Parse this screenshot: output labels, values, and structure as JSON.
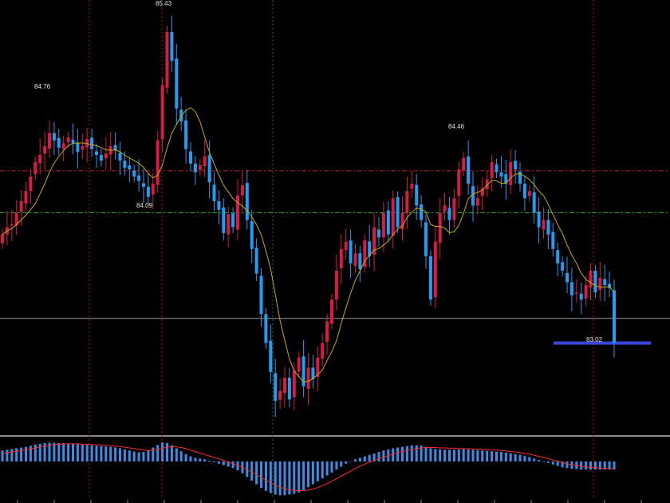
{
  "chart_data": {
    "type": "candlestick",
    "title": "",
    "xlabel": "",
    "ylabel": "",
    "ylim": [
      82.48,
      85.47
    ],
    "grid": false,
    "colors": {
      "up": "#d81b45",
      "down": "#1e9ef5",
      "ma_line": "#c8a814",
      "macd_bar": "#3a8ee6",
      "signal_line": "#ff2a2a",
      "price_line": "#9a9a9a",
      "red_level": "#c81e1e",
      "green_level": "#19b419",
      "blue_level": "#3c46dc",
      "vertical_marker": "#b01a1a",
      "vertical_marker_green": "#1a7a1a"
    },
    "annotations": [
      {
        "text": "85.43",
        "value": 85.43
      },
      {
        "text": "84.76",
        "value": 84.76
      },
      {
        "text": "84.09",
        "value": 84.09
      },
      {
        "text": "84.46",
        "value": 84.46
      },
      {
        "text": "83.02",
        "value": 83.02
      }
    ],
    "levels": {
      "red_dashed": 84.29,
      "green_dashed": 84.0,
      "current_price": 83.27,
      "blue_support": 83.1
    },
    "closes": [
      83.85,
      83.9,
      83.92,
      84.0,
      84.08,
      84.15,
      84.25,
      84.35,
      84.4,
      84.46,
      84.55,
      84.5,
      84.45,
      84.48,
      84.52,
      84.48,
      84.42,
      84.46,
      84.51,
      84.44,
      84.4,
      84.36,
      84.41,
      84.46,
      84.43,
      84.36,
      84.31,
      84.3,
      84.25,
      84.22,
      84.18,
      84.11,
      84.2,
      84.5,
      84.88,
      85.25,
      85.05,
      84.72,
      84.63,
      84.44,
      84.34,
      84.28,
      84.33,
      84.39,
      84.21,
      84.08,
      84.02,
      83.86,
      83.99,
      83.9,
      84.12,
      84.19,
      83.95,
      83.75,
      83.58,
      83.3,
      83.1,
      82.9,
      82.7,
      82.77,
      82.86,
      82.71,
      82.91,
      83.0,
      82.8,
      82.93,
      82.85,
      83.0,
      83.1,
      83.25,
      83.4,
      83.6,
      83.75,
      83.8,
      83.65,
      83.72,
      83.61,
      83.81,
      83.7,
      83.9,
      83.83,
      84.0,
      83.85,
      84.1,
      83.9,
      84.0,
      84.15,
      84.2,
      84.05,
      83.95,
      83.7,
      83.4,
      83.8,
      84.0,
      84.05,
      83.95,
      84.1,
      84.3,
      84.38,
      84.2,
      84.05,
      84.1,
      84.17,
      84.23,
      84.35,
      84.28,
      84.25,
      84.2,
      84.35,
      84.3,
      84.2,
      84.1,
      84.15,
      84.0,
      83.9,
      83.95,
      83.85,
      83.75,
      83.65,
      83.6,
      83.52,
      83.43,
      83.45,
      83.4,
      83.5,
      83.6,
      83.45,
      83.55,
      83.5,
      83.48,
      83.1
    ],
    "opens_note": "",
    "macd_histogram": [
      0.3,
      0.32,
      0.34,
      0.36,
      0.38,
      0.4,
      0.43,
      0.46,
      0.48,
      0.5,
      0.51,
      0.51,
      0.5,
      0.5,
      0.49,
      0.48,
      0.47,
      0.46,
      0.45,
      0.44,
      0.43,
      0.42,
      0.41,
      0.4,
      0.38,
      0.36,
      0.33,
      0.3,
      0.27,
      0.25,
      0.26,
      0.3,
      0.38,
      0.45,
      0.52,
      0.5,
      0.44,
      0.36,
      0.28,
      0.2,
      0.14,
      0.1,
      0.08,
      0.06,
      0.02,
      -0.02,
      -0.06,
      -0.1,
      -0.14,
      -0.18,
      -0.24,
      -0.32,
      -0.42,
      -0.52,
      -0.62,
      -0.72,
      -0.8,
      -0.86,
      -0.9,
      -0.92,
      -0.92,
      -0.9,
      -0.88,
      -0.84,
      -0.78,
      -0.7,
      -0.62,
      -0.54,
      -0.46,
      -0.38,
      -0.3,
      -0.22,
      -0.14,
      -0.06,
      0.0,
      0.06,
      0.1,
      0.14,
      0.18,
      0.22,
      0.26,
      0.3,
      0.33,
      0.36,
      0.38,
      0.4,
      0.42,
      0.44,
      0.44,
      0.43,
      0.4,
      0.36,
      0.34,
      0.33,
      0.32,
      0.32,
      0.32,
      0.33,
      0.34,
      0.33,
      0.32,
      0.31,
      0.3,
      0.29,
      0.28,
      0.27,
      0.26,
      0.24,
      0.22,
      0.2,
      0.18,
      0.15,
      0.12,
      0.08,
      0.04,
      0.0,
      -0.04,
      -0.08,
      -0.12,
      -0.16,
      -0.18,
      -0.2,
      -0.21,
      -0.22,
      -0.22,
      -0.22,
      -0.22,
      -0.22,
      -0.22,
      -0.22,
      -0.22
    ],
    "signal_line": [
      0.22,
      0.24,
      0.26,
      0.28,
      0.3,
      0.32,
      0.35,
      0.37,
      0.4,
      0.42,
      0.44,
      0.46,
      0.47,
      0.48,
      0.48,
      0.48,
      0.48,
      0.47,
      0.47,
      0.46,
      0.45,
      0.45,
      0.44,
      0.43,
      0.42,
      0.41,
      0.39,
      0.37,
      0.35,
      0.33,
      0.31,
      0.3,
      0.31,
      0.33,
      0.36,
      0.39,
      0.4,
      0.4,
      0.38,
      0.35,
      0.31,
      0.27,
      0.23,
      0.19,
      0.15,
      0.11,
      0.07,
      0.03,
      -0.02,
      -0.06,
      -0.11,
      -0.16,
      -0.22,
      -0.29,
      -0.36,
      -0.44,
      -0.51,
      -0.58,
      -0.64,
      -0.7,
      -0.74,
      -0.77,
      -0.79,
      -0.8,
      -0.8,
      -0.78,
      -0.75,
      -0.71,
      -0.66,
      -0.6,
      -0.54,
      -0.47,
      -0.4,
      -0.33,
      -0.26,
      -0.19,
      -0.13,
      -0.07,
      -0.02,
      0.03,
      0.08,
      0.12,
      0.16,
      0.2,
      0.24,
      0.27,
      0.3,
      0.33,
      0.35,
      0.37,
      0.38,
      0.38,
      0.38,
      0.37,
      0.37,
      0.36,
      0.36,
      0.35,
      0.35,
      0.35,
      0.34,
      0.34,
      0.33,
      0.32,
      0.32,
      0.31,
      0.3,
      0.29,
      0.27,
      0.26,
      0.24,
      0.22,
      0.2,
      0.17,
      0.14,
      0.11,
      0.08,
      0.04,
      0.01,
      -0.03,
      -0.06,
      -0.09,
      -0.11,
      -0.13,
      -0.15,
      -0.16,
      -0.17,
      -0.18,
      -0.19,
      -0.19,
      -0.2
    ]
  }
}
